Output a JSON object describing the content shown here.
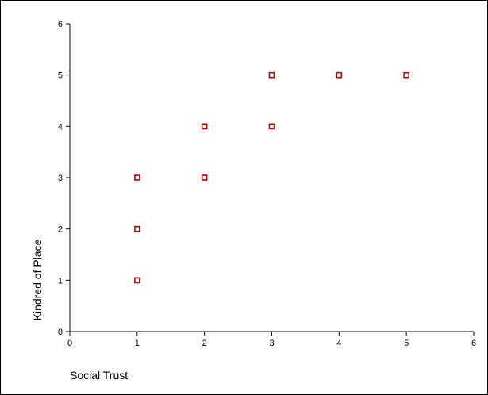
{
  "chart_data": {
    "type": "scatter",
    "title": "",
    "xlabel": "Social Trust",
    "ylabel": "Kindred of Place",
    "xlim": [
      0,
      6
    ],
    "ylim": [
      0,
      6
    ],
    "xticks": [
      "0",
      "1",
      "2",
      "3",
      "4",
      "5",
      "6"
    ],
    "yticks": [
      "0",
      "1",
      "2",
      "3",
      "4",
      "5",
      "6"
    ],
    "grid": false,
    "legend": "none",
    "series": [
      {
        "marker_color": "#cc0000",
        "points": [
          {
            "x": 1,
            "y": 1
          },
          {
            "x": 1,
            "y": 2
          },
          {
            "x": 1,
            "y": 3
          },
          {
            "x": 2,
            "y": 3
          },
          {
            "x": 2,
            "y": 4
          },
          {
            "x": 3,
            "y": 4
          },
          {
            "x": 3,
            "y": 5
          },
          {
            "x": 4,
            "y": 5
          },
          {
            "x": 5,
            "y": 5
          }
        ]
      }
    ]
  }
}
